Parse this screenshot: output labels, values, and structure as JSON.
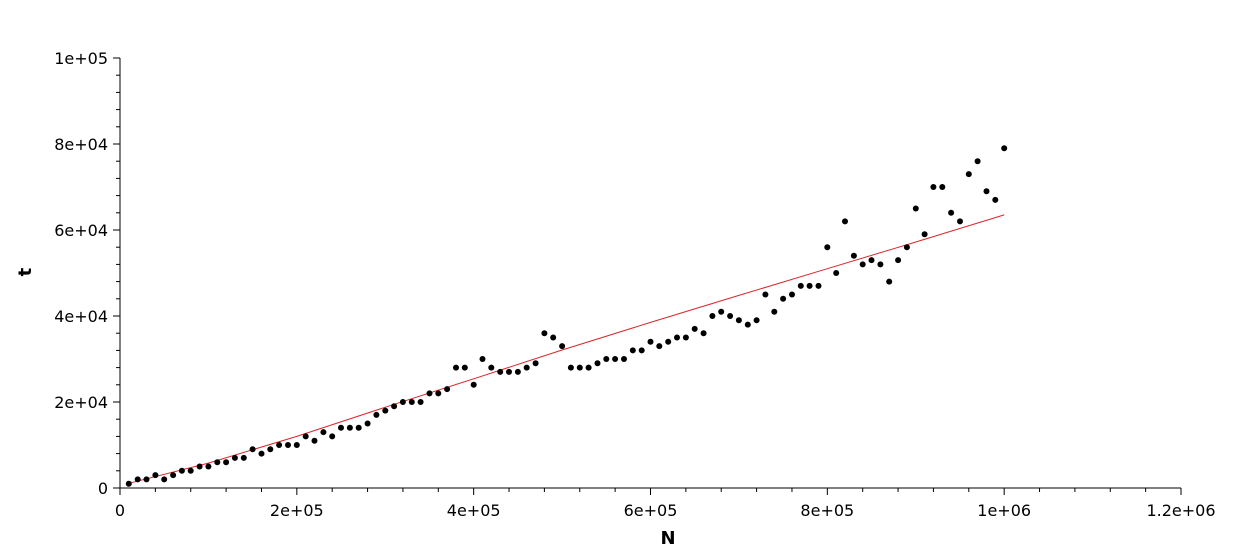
{
  "chart_data": {
    "type": "scatter",
    "xlabel": "N",
    "ylabel": "t",
    "xlim": [
      0,
      1200000
    ],
    "ylim": [
      0,
      100000
    ],
    "x_ticks": [
      {
        "value": 0,
        "label": "0"
      },
      {
        "value": 200000,
        "label": "2e+05"
      },
      {
        "value": 400000,
        "label": "4e+05"
      },
      {
        "value": 600000,
        "label": "6e+05"
      },
      {
        "value": 800000,
        "label": "8e+05"
      },
      {
        "value": 1000000,
        "label": "1e+06"
      },
      {
        "value": 1200000,
        "label": "1.2e+06"
      }
    ],
    "y_ticks": [
      {
        "value": 0,
        "label": "0"
      },
      {
        "value": 20000,
        "label": "2e+04"
      },
      {
        "value": 40000,
        "label": "4e+04"
      },
      {
        "value": 60000,
        "label": "6e+04"
      },
      {
        "value": 80000,
        "label": "8e+04"
      },
      {
        "value": 100000,
        "label": "1e+05"
      }
    ],
    "grid": false,
    "series": [
      {
        "kind": "scatter",
        "color": "#000000",
        "x": [
          10000,
          20000,
          30000,
          40000,
          50000,
          60000,
          70000,
          80000,
          90000,
          100000,
          110000,
          120000,
          130000,
          140000,
          150000,
          160000,
          170000,
          180000,
          190000,
          200000,
          210000,
          220000,
          230000,
          240000,
          250000,
          260000,
          270000,
          280000,
          290000,
          300000,
          310000,
          320000,
          330000,
          340000,
          350000,
          360000,
          370000,
          380000,
          390000,
          400000,
          410000,
          420000,
          430000,
          440000,
          450000,
          460000,
          470000,
          480000,
          490000,
          500000,
          510000,
          520000,
          530000,
          540000,
          550000,
          560000,
          570000,
          580000,
          590000,
          600000,
          610000,
          620000,
          630000,
          640000,
          650000,
          660000,
          670000,
          680000,
          690000,
          700000,
          710000,
          720000,
          730000,
          740000,
          750000,
          760000,
          770000,
          780000,
          790000,
          800000,
          810000,
          820000,
          830000,
          840000,
          850000,
          860000,
          870000,
          880000,
          890000,
          900000,
          910000,
          920000,
          930000,
          940000,
          950000,
          960000,
          970000,
          980000,
          990000,
          1000000
        ],
        "y": [
          1000,
          2000,
          2000,
          3000,
          2000,
          3000,
          4000,
          4000,
          5000,
          5000,
          6000,
          6000,
          7000,
          7000,
          9000,
          8000,
          9000,
          10000,
          10000,
          10000,
          12000,
          11000,
          13000,
          12000,
          14000,
          14000,
          14000,
          15000,
          17000,
          18000,
          19000,
          20000,
          20000,
          20000,
          22000,
          22000,
          23000,
          28000,
          28000,
          24000,
          30000,
          28000,
          27000,
          27000,
          27000,
          28000,
          29000,
          36000,
          35000,
          33000,
          28000,
          28000,
          28000,
          29000,
          30000,
          30000,
          30000,
          32000,
          32000,
          34000,
          33000,
          34000,
          35000,
          35000,
          37000,
          36000,
          40000,
          41000,
          40000,
          39000,
          38000,
          39000,
          45000,
          41000,
          44000,
          45000,
          47000,
          47000,
          47000,
          56000,
          50000,
          62000,
          54000,
          52000,
          53000,
          52000,
          48000,
          53000,
          56000,
          65000,
          59000,
          70000,
          70000,
          64000,
          62000,
          73000,
          76000,
          69000,
          67000,
          79000
        ]
      },
      {
        "kind": "line",
        "color": "#d9262a",
        "x": [
          10000,
          100000,
          200000,
          300000,
          400000,
          500000,
          600000,
          700000,
          800000,
          900000,
          1000000
        ],
        "y": [
          1100,
          5800,
          12000,
          18800,
          25400,
          32100,
          38500,
          44800,
          51000,
          57200,
          63500
        ]
      }
    ]
  }
}
